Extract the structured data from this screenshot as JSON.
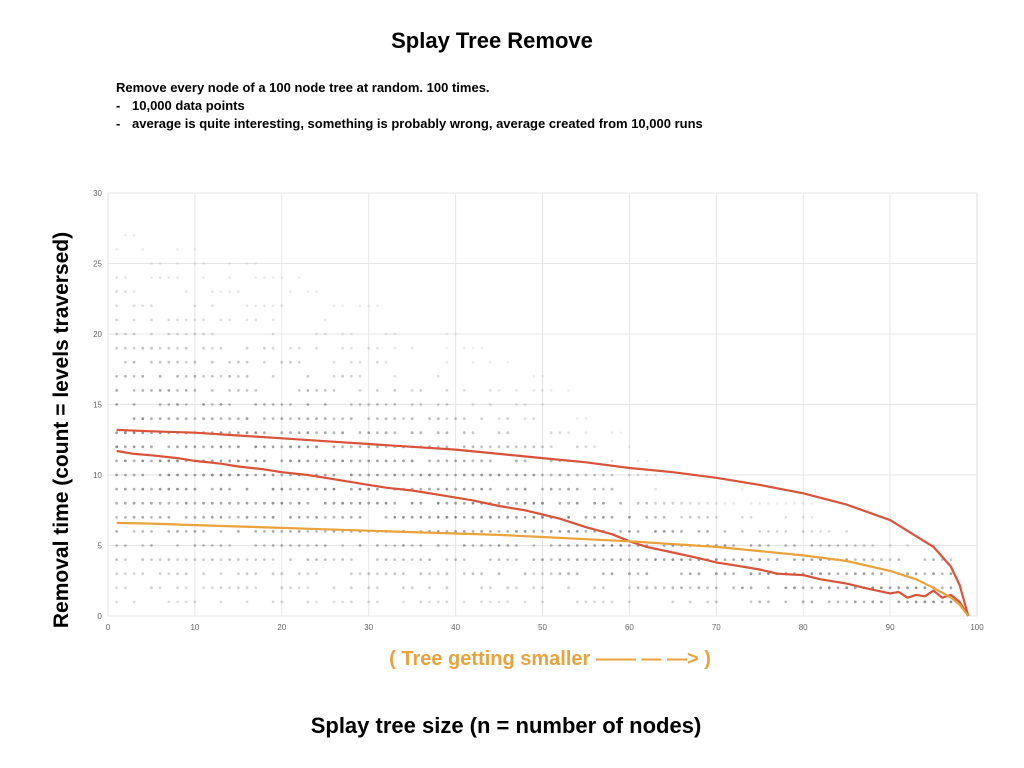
{
  "title": "Splay Tree Remove",
  "notes": {
    "line1": "Remove every node of a 100 node tree at random. 100 times.",
    "bullets": [
      {
        "dash": "-",
        "text": "10,000 data points"
      },
      {
        "dash": "-",
        "text": "average is quite interesting, something is probably wrong, average created from 10,000 runs"
      }
    ]
  },
  "ylabel": "Removal time (count = levels traversed)",
  "xlabel": "Splay tree size (n = number of nodes)",
  "arrow_note": "( Tree getting smaller —— — —> )",
  "colors": {
    "red": "#d9523a",
    "orange": "#e8a33c",
    "dots": "#555555",
    "grid": "#e6e6e6"
  },
  "chart_data": {
    "type": "scatter",
    "title": "",
    "xlabel": "",
    "ylabel": "",
    "xlim": [
      0,
      100
    ],
    "ylim": [
      0,
      30
    ],
    "xticks": [
      "0",
      "10",
      "20",
      "30",
      "40",
      "50",
      "60",
      "70",
      "80",
      "90",
      "100"
    ],
    "yticks": [
      "0",
      "5",
      "10",
      "15",
      "20",
      "25",
      "30"
    ],
    "grid": true,
    "legend": "none",
    "scatter_note": "integer-valued removal times from 100 runs at each tree size",
    "series": [
      {
        "color": "red",
        "x": [
          1,
          5,
          10,
          15,
          20,
          25,
          30,
          35,
          40,
          45,
          50,
          55,
          60,
          65,
          70,
          75,
          80,
          85,
          90,
          95,
          97,
          98,
          99
        ],
        "y": [
          13.2,
          13.1,
          13.0,
          12.8,
          12.6,
          12.4,
          12.2,
          12.0,
          11.8,
          11.5,
          11.2,
          10.9,
          10.5,
          10.2,
          9.8,
          9.3,
          8.7,
          7.9,
          6.8,
          4.9,
          3.5,
          2.2,
          0
        ]
      },
      {
        "color": "red",
        "x": [
          1,
          3,
          5,
          8,
          10,
          13,
          15,
          18,
          20,
          23,
          25,
          28,
          30,
          32,
          35,
          38,
          40,
          42,
          45,
          48,
          50,
          52,
          55,
          58,
          60,
          62,
          65,
          68,
          70,
          72,
          75,
          77,
          80,
          82,
          85,
          87,
          90,
          91,
          92,
          93,
          94,
          95,
          96,
          97,
          98,
          99
        ],
        "y": [
          11.7,
          11.5,
          11.4,
          11.2,
          11.0,
          10.8,
          10.6,
          10.4,
          10.2,
          10.0,
          9.8,
          9.5,
          9.3,
          9.1,
          8.9,
          8.6,
          8.4,
          8.2,
          7.8,
          7.5,
          7.2,
          6.9,
          6.3,
          5.8,
          5.3,
          4.9,
          4.5,
          4.1,
          3.8,
          3.6,
          3.3,
          3.0,
          2.9,
          2.6,
          2.3,
          2.0,
          1.6,
          1.7,
          1.3,
          1.5,
          1.4,
          1.8,
          1.3,
          1.5,
          1.0,
          0
        ]
      },
      {
        "color": "orange",
        "x": [
          1,
          5,
          10,
          15,
          20,
          25,
          30,
          35,
          40,
          45,
          50,
          55,
          60,
          65,
          70,
          75,
          80,
          85,
          90,
          93,
          95,
          97,
          98,
          99
        ],
        "y": [
          6.6,
          6.55,
          6.45,
          6.35,
          6.25,
          6.15,
          6.05,
          5.95,
          5.85,
          5.75,
          5.6,
          5.45,
          5.3,
          5.1,
          4.9,
          4.6,
          4.3,
          3.9,
          3.2,
          2.6,
          2.0,
          1.3,
          0.8,
          0
        ]
      }
    ]
  }
}
